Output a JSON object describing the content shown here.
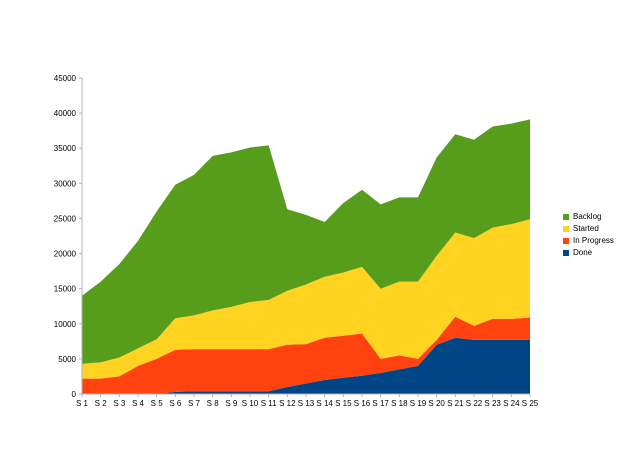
{
  "chart_data": {
    "type": "area",
    "stacked": true,
    "categories": [
      "S 1",
      "S 2",
      "S 3",
      "S 4",
      "S 5",
      "S 6",
      "S 7",
      "S 8",
      "S 9",
      "S 10",
      "S 11",
      "S 12",
      "S 13",
      "S 14",
      "S 15",
      "S 16",
      "S 17",
      "S 18",
      "S 19",
      "S 20",
      "S 21",
      "S 22",
      "S 23",
      "S 24",
      "S 25"
    ],
    "ylim": [
      0,
      45000
    ],
    "yticks": [
      0,
      5000,
      10000,
      15000,
      20000,
      25000,
      30000,
      35000,
      40000,
      45000
    ],
    "grid": false,
    "legend_position": "right",
    "series": [
      {
        "name": "Done",
        "color": "#004586",
        "values": [
          0,
          0,
          0,
          0,
          0,
          300,
          400,
          400,
          400,
          400,
          400,
          1000,
          1500,
          2000,
          2300,
          2600,
          3000,
          3500,
          4000,
          7000,
          8000,
          7700,
          7700,
          7700,
          7700
        ]
      },
      {
        "name": "In Progress",
        "color": "#ff420e",
        "values": [
          2200,
          2200,
          2500,
          4000,
          5000,
          6000,
          6000,
          6000,
          6000,
          6000,
          6000,
          6000,
          5600,
          6000,
          6000,
          6000,
          2000,
          2000,
          1000,
          700,
          3000,
          2000,
          3000,
          3000,
          3200
        ]
      },
      {
        "name": "Started",
        "color": "#ffd320",
        "values": [
          2100,
          2300,
          2700,
          2500,
          2800,
          4500,
          4800,
          5500,
          6000,
          6700,
          7000,
          7700,
          8500,
          8700,
          9000,
          9500,
          10000,
          10500,
          11000,
          12000,
          12000,
          12500,
          13000,
          13500,
          14000
        ]
      },
      {
        "name": "Backlog",
        "color": "#579d1c",
        "values": [
          9700,
          11500,
          13300,
          15300,
          18200,
          19000,
          20000,
          22000,
          22000,
          22000,
          22000,
          11600,
          9900,
          7800,
          9900,
          11000,
          12000,
          12000,
          12000,
          14000,
          14000,
          14000,
          14400,
          14300,
          14200
        ]
      }
    ],
    "legend_order": [
      "Backlog",
      "Started",
      "In Progress",
      "Done"
    ]
  }
}
